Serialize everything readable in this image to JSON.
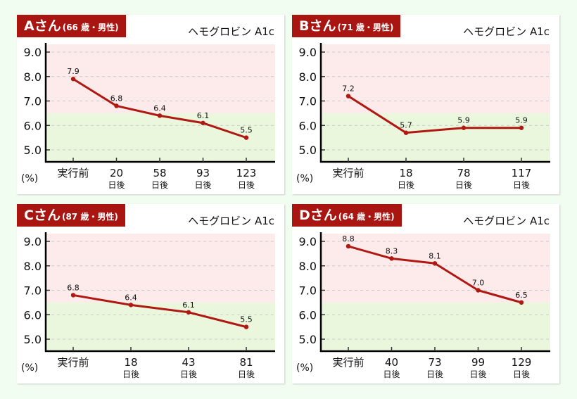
{
  "colors": {
    "line": "#b01812",
    "header_bg": "#a91511",
    "high_zone": "#fdebeb",
    "normal_zone": "#ebf7dc"
  },
  "chart_data": [
    {
      "type": "line",
      "patient": "Aさん",
      "patient_info": "(66 歳・男性)",
      "title": "ヘモグロビン A1c",
      "ylabel": "(%)",
      "ylim": [
        4.5,
        9.3
      ],
      "yticks": [
        "9.0",
        "8.0",
        "7.0",
        "6.0",
        "5.0"
      ],
      "ytick_values": [
        9,
        8,
        7,
        6,
        5
      ],
      "threshold": 6.5,
      "categories": [
        "実行前",
        "20",
        "58",
        "93",
        "123"
      ],
      "category_sub": [
        "",
        "日後",
        "日後",
        "日後",
        "日後"
      ],
      "values": [
        7.9,
        6.8,
        6.4,
        6.1,
        5.5
      ],
      "labels": [
        "7.9",
        "6.8",
        "6.4",
        "6.1",
        "5.5"
      ]
    },
    {
      "type": "line",
      "patient": "Bさん",
      "patient_info": "(71 歳・男性)",
      "title": "ヘモグロビン A1c",
      "ylabel": "(%)",
      "ylim": [
        4.5,
        9.3
      ],
      "yticks": [
        "9.0",
        "8.0",
        "7.0",
        "6.0",
        "5.0"
      ],
      "ytick_values": [
        9,
        8,
        7,
        6,
        5
      ],
      "threshold": 6.5,
      "categories": [
        "実行前",
        "18",
        "78",
        "117"
      ],
      "category_sub": [
        "",
        "日後",
        "日後",
        "日後"
      ],
      "values": [
        7.2,
        5.7,
        5.9,
        5.9
      ],
      "labels": [
        "7.2",
        "5.7",
        "5.9",
        "5.9"
      ]
    },
    {
      "type": "line",
      "patient": "Cさん",
      "patient_info": "(87 歳・男性)",
      "title": "ヘモグロビン A1c",
      "ylabel": "(%)",
      "ylim": [
        4.5,
        9.3
      ],
      "yticks": [
        "9.0",
        "8.0",
        "7.0",
        "6.0",
        "5.0"
      ],
      "ytick_values": [
        9,
        8,
        7,
        6,
        5
      ],
      "threshold": 6.5,
      "categories": [
        "実行前",
        "18",
        "43",
        "81"
      ],
      "category_sub": [
        "",
        "日後",
        "日後",
        "日後"
      ],
      "values": [
        6.8,
        6.4,
        6.1,
        5.5
      ],
      "labels": [
        "6.8",
        "6.4",
        "6.1",
        "5.5"
      ]
    },
    {
      "type": "line",
      "patient": "Dさん",
      "patient_info": "(64 歳・男性)",
      "title": "ヘモグロビン A1c",
      "ylabel": "(%)",
      "ylim": [
        4.5,
        9.3
      ],
      "yticks": [
        "9.0",
        "8.0",
        "7.0",
        "6.0",
        "5.0"
      ],
      "ytick_values": [
        9,
        8,
        7,
        6,
        5
      ],
      "threshold": 6.5,
      "categories": [
        "実行前",
        "40",
        "73",
        "99",
        "129"
      ],
      "category_sub": [
        "",
        "日後",
        "日後",
        "日後",
        "日後"
      ],
      "values": [
        8.8,
        8.3,
        8.1,
        7.0,
        6.5
      ],
      "labels": [
        "8.8",
        "8.3",
        "8.1",
        "7.0",
        "6.5"
      ]
    }
  ]
}
